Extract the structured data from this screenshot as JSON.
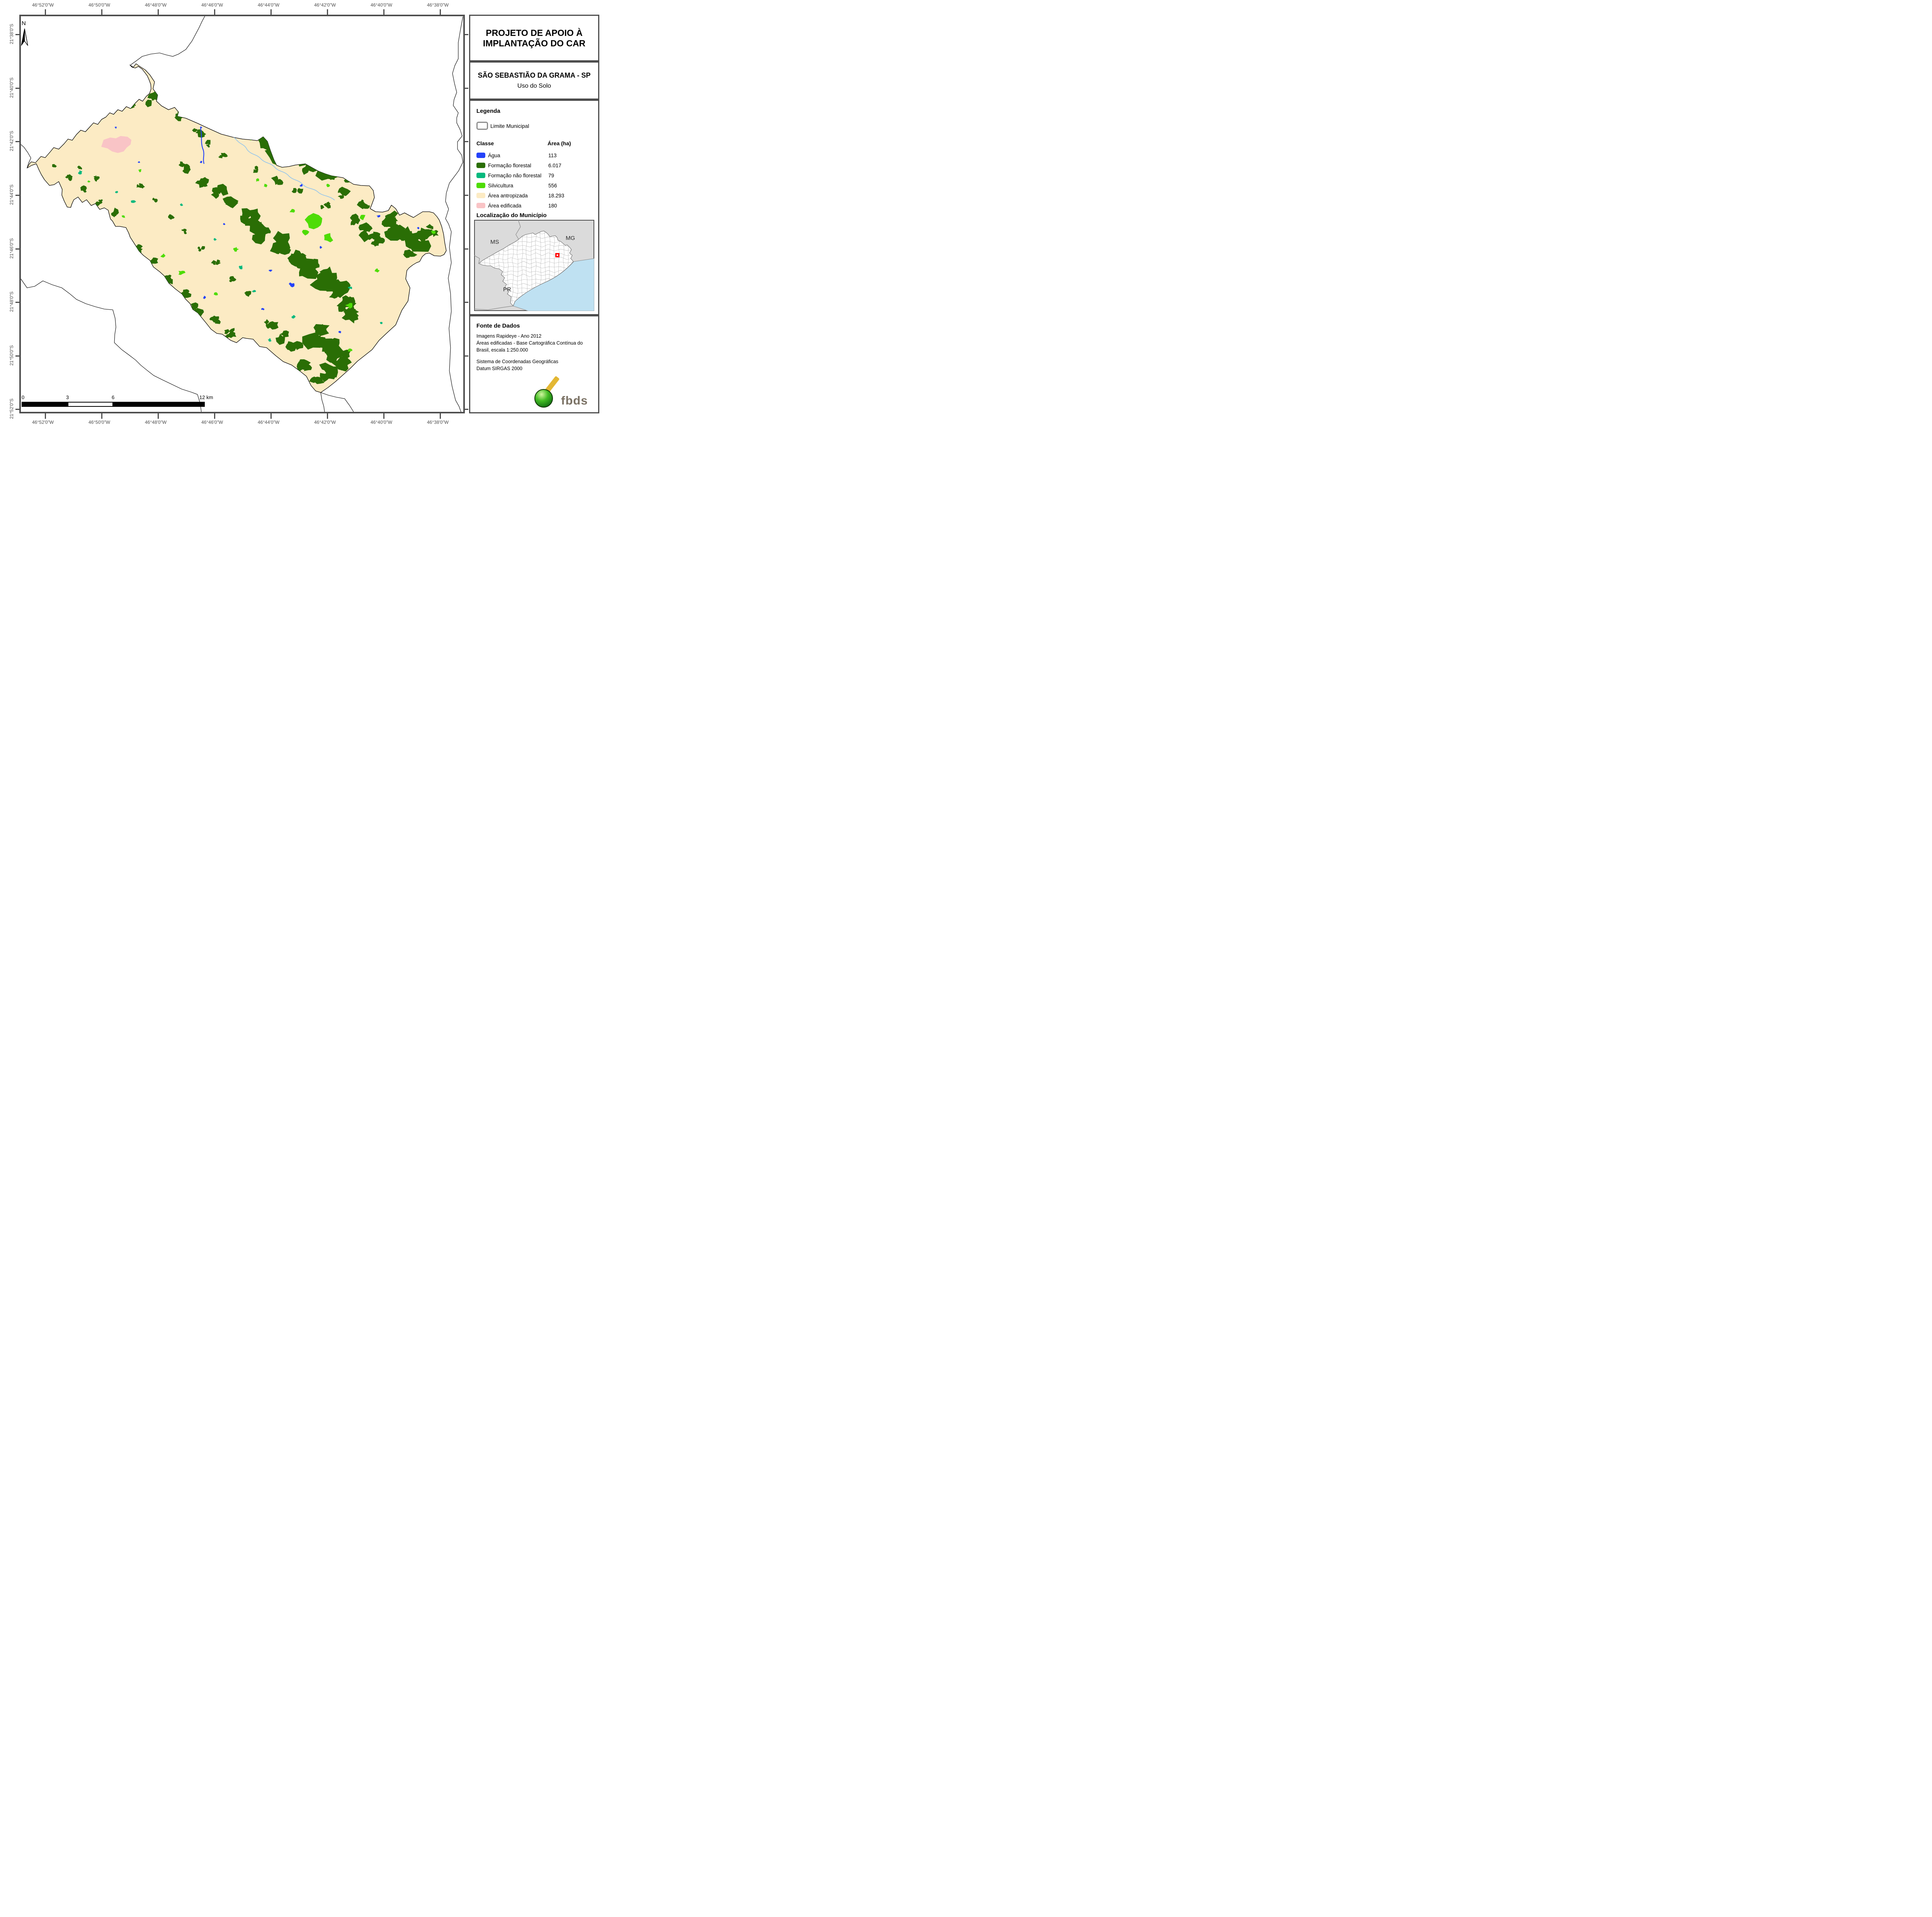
{
  "map": {
    "north_label": "N",
    "axes": {
      "top": [
        "46°52'0\"W",
        "46°50'0\"W",
        "46°48'0\"W",
        "46°46'0\"W",
        "46°44'0\"W",
        "46°42'0\"W",
        "46°40'0\"W",
        "46°38'0\"W"
      ],
      "bottom": [
        "46°52'0\"W",
        "46°50'0\"W",
        "46°48'0\"W",
        "46°46'0\"W",
        "46°44'0\"W",
        "46°42'0\"W",
        "46°40'0\"W",
        "46°38'0\"W"
      ],
      "left": [
        "21°38'0\"S",
        "21°40'0\"S",
        "21°42'0\"S",
        "21°44'0\"S",
        "21°46'0\"S",
        "21°48'0\"S",
        "21°50'0\"S",
        "21°52'0\"S"
      ]
    },
    "scalebar": {
      "labels": [
        "0",
        "3",
        "6",
        "12 km"
      ]
    }
  },
  "panel": {
    "title": "PROJETO DE APOIO À IMPLANTAÇÃO DO CAR",
    "municipality": "SÃO SEBASTIÃO DA GRAMA - SP",
    "subtitle": "Uso do Solo",
    "legend": {
      "heading": "Legenda",
      "limite_label": "Limite Municipal",
      "col_class": "Classe",
      "col_area": "Área (ha)",
      "rows": [
        {
          "label": "Água",
          "area": "113"
        },
        {
          "label": "Formação florestal",
          "area": "6.017"
        },
        {
          "label": "Formação não florestal",
          "area": "79"
        },
        {
          "label": "Silvicultura",
          "area": "556"
        },
        {
          "label": "Área antropizada",
          "area": "18.293"
        },
        {
          "label": "Área edificada",
          "area": "180"
        }
      ]
    },
    "location": {
      "heading": "Localização do Município",
      "state_labels": [
        "MS",
        "MG",
        "PR"
      ]
    },
    "fonte": {
      "heading": "Fonte de Dados",
      "para1": "Imagens Rapideye - Ano 2012\nÁreas edificadas - Base Cartográfica Contínua do Brasil, escala 1:250.000",
      "para2": "Sistema de Coordenadas Geográficas\nDatum SIRGAS 2000",
      "logo_text": "fbds"
    }
  },
  "colors": {
    "agua": "#2442F9",
    "florestal": "#2A6E05",
    "nao_florestal": "#06B97E",
    "silvicultura": "#4EDC06",
    "antropizada": "#FCEBC4",
    "edificada": "#F9C4C6",
    "frame": "#4d4d4d",
    "stream": "#8FC3EE",
    "inset_bg": "#DBDBDB",
    "inset_sea": "#BFE1F2",
    "marker_red": "#FF0000",
    "logo_yellow": "#E3B733",
    "logo_green": "#2FA81D"
  }
}
